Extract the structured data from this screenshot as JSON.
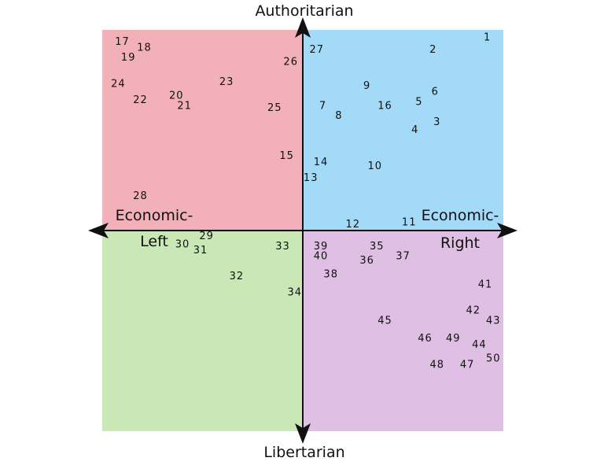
{
  "chart_data": {
    "type": "scatter",
    "title": "",
    "xlabel_left": "Economic-\nLeft",
    "xlabel_right": "Economic-\nRight",
    "ylabel_top": "Authoritarian",
    "ylabel_bottom": "Libertarian",
    "xlim": [
      -10,
      10
    ],
    "ylim": [
      -10,
      10
    ],
    "grid": false,
    "quadrant_colors": {
      "top_left": "#f2b0b8",
      "top_right": "#a3daf8",
      "bottom_left": "#c9e8b5",
      "bottom_right": "#dfbfe3"
    },
    "points": [
      {
        "label": "1",
        "x": 9.2,
        "y": 9.6
      },
      {
        "label": "2",
        "x": 6.5,
        "y": 9.0
      },
      {
        "label": "3",
        "x": 6.7,
        "y": 5.4
      },
      {
        "label": "4",
        "x": 5.6,
        "y": 5.0
      },
      {
        "label": "5",
        "x": 5.8,
        "y": 6.4
      },
      {
        "label": "6",
        "x": 6.6,
        "y": 6.9
      },
      {
        "label": "7",
        "x": 1.0,
        "y": 6.2
      },
      {
        "label": "8",
        "x": 1.8,
        "y": 5.7
      },
      {
        "label": "9",
        "x": 3.2,
        "y": 7.2
      },
      {
        "label": "10",
        "x": 3.6,
        "y": 3.2
      },
      {
        "label": "11",
        "x": 5.3,
        "y": 0.4
      },
      {
        "label": "12",
        "x": 2.5,
        "y": 0.3
      },
      {
        "label": "13",
        "x": 0.4,
        "y": 2.6
      },
      {
        "label": "14",
        "x": 0.9,
        "y": 3.4
      },
      {
        "label": "15",
        "x": -0.8,
        "y": 3.7
      },
      {
        "label": "16",
        "x": 4.1,
        "y": 6.2
      },
      {
        "label": "17",
        "x": -9.0,
        "y": 9.4
      },
      {
        "label": "18",
        "x": -7.9,
        "y": 9.1
      },
      {
        "label": "19",
        "x": -8.7,
        "y": 8.6
      },
      {
        "label": "20",
        "x": -6.3,
        "y": 6.7
      },
      {
        "label": "21",
        "x": -5.9,
        "y": 6.2
      },
      {
        "label": "22",
        "x": -8.1,
        "y": 6.5
      },
      {
        "label": "23",
        "x": -3.8,
        "y": 7.4
      },
      {
        "label": "24",
        "x": -9.2,
        "y": 7.3
      },
      {
        "label": "25",
        "x": -1.4,
        "y": 6.1
      },
      {
        "label": "26",
        "x": -0.6,
        "y": 8.4
      },
      {
        "label": "27",
        "x": 0.7,
        "y": 9.0
      },
      {
        "label": "28",
        "x": -8.1,
        "y": 1.7
      },
      {
        "label": "29",
        "x": -4.8,
        "y": -0.3
      },
      {
        "label": "30",
        "x": -6.0,
        "y": -0.7
      },
      {
        "label": "31",
        "x": -5.1,
        "y": -1.0
      },
      {
        "label": "32",
        "x": -3.3,
        "y": -2.3
      },
      {
        "label": "33",
        "x": -1.0,
        "y": -0.8
      },
      {
        "label": "34",
        "x": -0.4,
        "y": -3.1
      },
      {
        "label": "35",
        "x": 3.7,
        "y": -0.8
      },
      {
        "label": "36",
        "x": 3.2,
        "y": -1.5
      },
      {
        "label": "37",
        "x": 5.0,
        "y": -1.3
      },
      {
        "label": "38",
        "x": 1.4,
        "y": -2.2
      },
      {
        "label": "39",
        "x": 0.9,
        "y": -0.8
      },
      {
        "label": "40",
        "x": 0.9,
        "y": -1.3
      },
      {
        "label": "41",
        "x": 9.1,
        "y": -2.7
      },
      {
        "label": "42",
        "x": 8.5,
        "y": -4.0
      },
      {
        "label": "43",
        "x": 9.5,
        "y": -4.5
      },
      {
        "label": "44",
        "x": 8.8,
        "y": -5.7
      },
      {
        "label": "45",
        "x": 4.1,
        "y": -4.5
      },
      {
        "label": "46",
        "x": 6.1,
        "y": -5.4
      },
      {
        "label": "47",
        "x": 8.2,
        "y": -6.7
      },
      {
        "label": "48",
        "x": 6.7,
        "y": -6.7
      },
      {
        "label": "49",
        "x": 7.5,
        "y": -5.4
      },
      {
        "label": "50",
        "x": 9.5,
        "y": -6.4
      }
    ]
  }
}
